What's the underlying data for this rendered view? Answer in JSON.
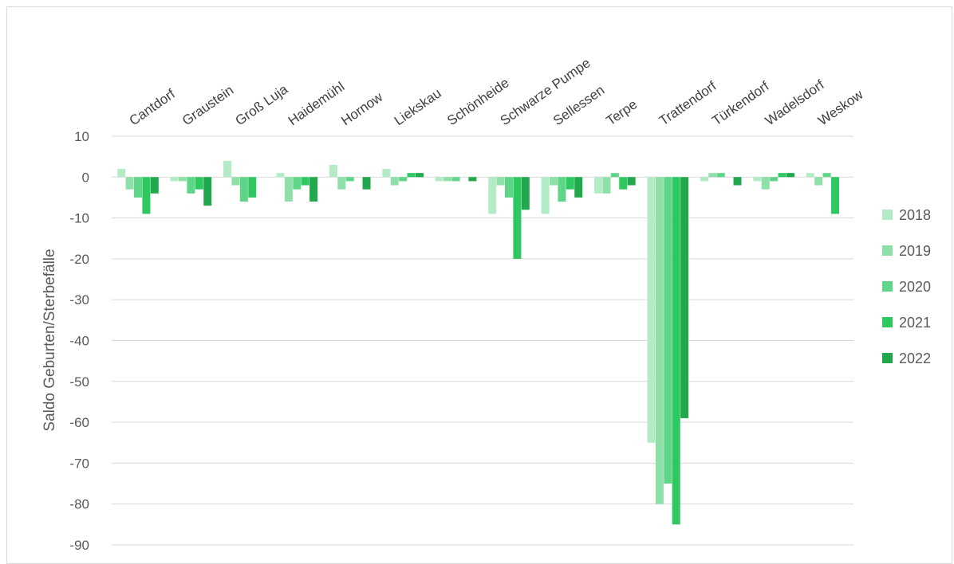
{
  "chart_data": {
    "type": "bar",
    "title": "",
    "xlabel": "",
    "ylabel": "Saldo Geburten/Sterbefälle",
    "ylim": [
      -90,
      10
    ],
    "yticks": [
      10,
      0,
      -10,
      -20,
      -30,
      -40,
      -50,
      -60,
      -70,
      -80,
      -90
    ],
    "grid": true,
    "legend_position": "right",
    "categories": [
      "Cantdorf",
      "Graustein",
      "Groß Luja",
      "Haidemühl",
      "Hornow",
      "Liekskau",
      "Schönheide",
      "Schwarze Pumpe",
      "Sellessen",
      "Terpe",
      "Trattendorf",
      "Türkendorf",
      "Wadelsdorf",
      "Weskow"
    ],
    "series": [
      {
        "name": "2018",
        "color": "#b3ebc6",
        "values": [
          2,
          -1,
          4,
          1,
          3,
          2,
          -1,
          -9,
          -9,
          -4,
          -65,
          -1,
          -1,
          1
        ]
      },
      {
        "name": "2019",
        "color": "#8ee0a8",
        "values": [
          -3,
          -1,
          -2,
          -6,
          -3,
          -2,
          -1,
          -2,
          -2,
          -4,
          -80,
          1,
          -3,
          -2
        ]
      },
      {
        "name": "2020",
        "color": "#5fd587",
        "values": [
          -5,
          -4,
          -6,
          -3,
          -1,
          -1,
          -1,
          -5,
          -6,
          1,
          -75,
          1,
          -1,
          1
        ]
      },
      {
        "name": "2021",
        "color": "#2ec860",
        "values": [
          -9,
          -3,
          -5,
          -2,
          0,
          1,
          0,
          -20,
          -3,
          -3,
          -85,
          0,
          1,
          -9
        ]
      },
      {
        "name": "2022",
        "color": "#22a84c",
        "values": [
          -4,
          -7,
          0,
          -6,
          -3,
          1,
          -1,
          -8,
          -5,
          -2,
          -59,
          -2,
          1,
          0
        ]
      }
    ]
  }
}
